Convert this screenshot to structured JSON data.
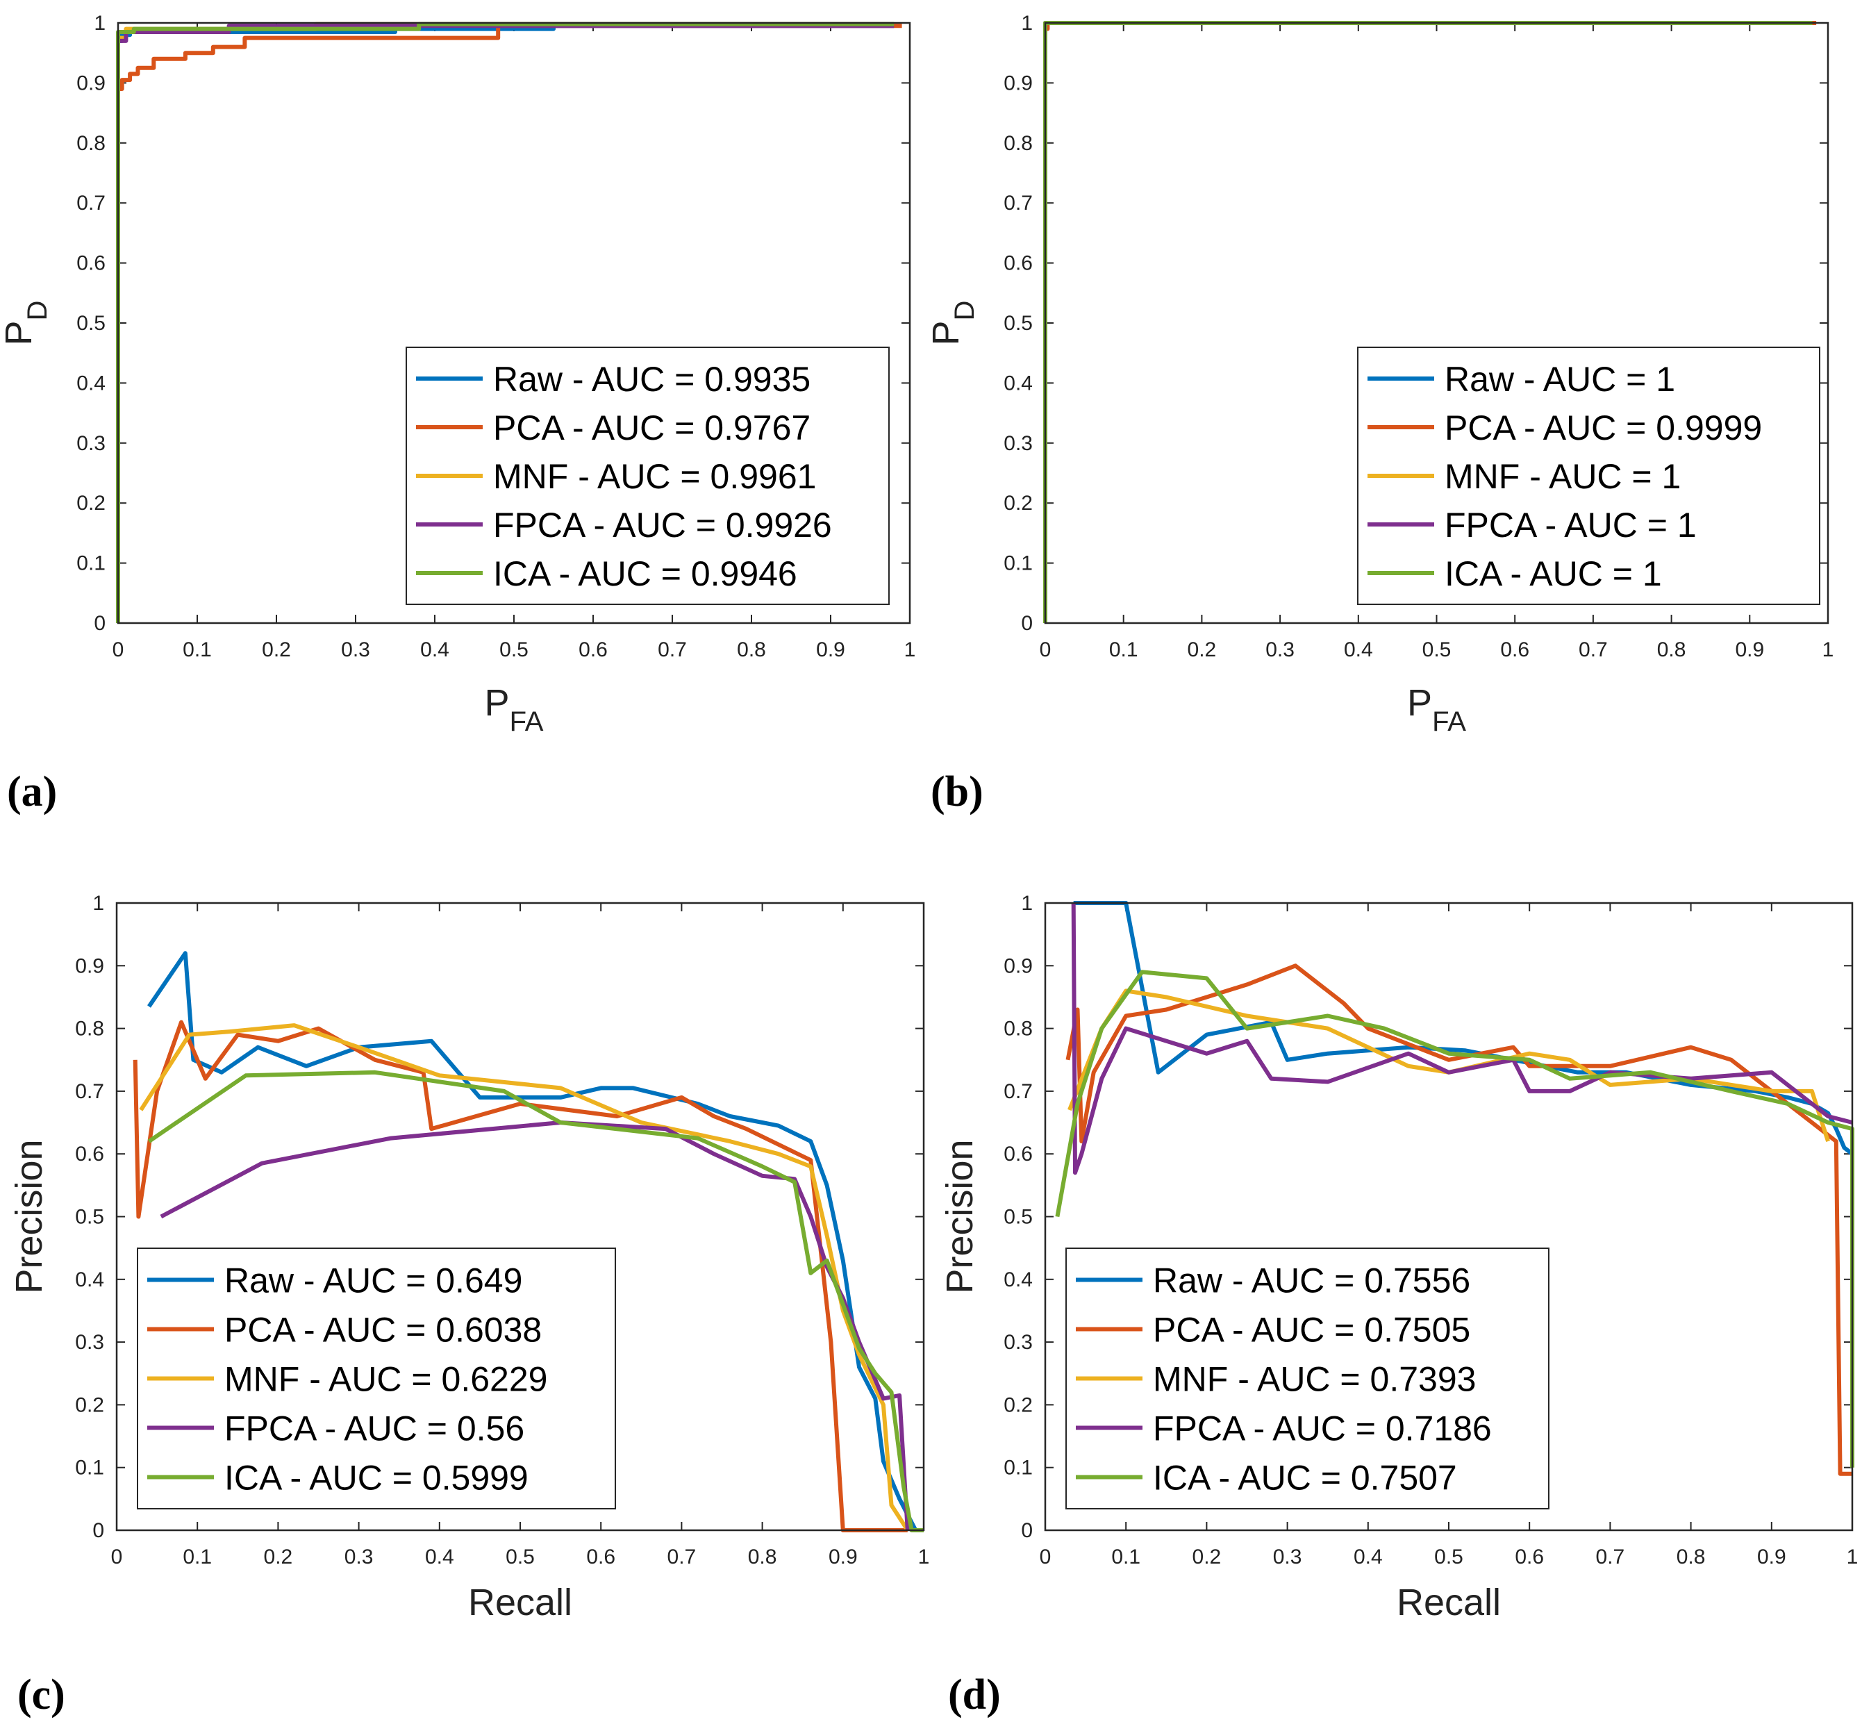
{
  "colors": {
    "Raw": "#0072BD",
    "PCA": "#D95319",
    "MNF": "#EDB120",
    "FPCA": "#7E2F8E",
    "ICA": "#77AC30"
  },
  "chart_data": [
    {
      "panel_label": "(a)",
      "type": "line",
      "title": "",
      "xlabel_main": "P",
      "xlabel_sub": "FA",
      "ylabel_main": "P",
      "ylabel_sub": "D",
      "xlim": [
        0,
        1
      ],
      "ylim": [
        0,
        1
      ],
      "xticks": [
        "0",
        "0.1",
        "0.2",
        "0.3",
        "0.4",
        "0.5",
        "0.6",
        "0.7",
        "0.8",
        "0.9",
        "1"
      ],
      "yticks": [
        "0",
        "0.1",
        "0.2",
        "0.3",
        "0.4",
        "0.5",
        "0.6",
        "0.7",
        "0.8",
        "0.9",
        "1"
      ],
      "legend_position": "bottom-right",
      "series": [
        {
          "name": "Raw",
          "legend": "Raw - AUC = 0.9935",
          "x": [
            0,
            0,
            0.005,
            0.005,
            0.015,
            0.015,
            0.35,
            0.35,
            0.55,
            0.55,
            0.98
          ],
          "y": [
            0,
            0.97,
            0.97,
            0.98,
            0.98,
            0.985,
            0.985,
            0.99,
            0.99,
            0.995,
            0.995
          ]
        },
        {
          "name": "PCA",
          "legend": "PCA - AUC = 0.9767",
          "x": [
            0,
            0,
            0.005,
            0.005,
            0.015,
            0.015,
            0.025,
            0.025,
            0.045,
            0.045,
            0.085,
            0.085,
            0.12,
            0.12,
            0.16,
            0.16,
            0.48,
            0.48,
            0.99
          ],
          "y": [
            0,
            0.89,
            0.89,
            0.905,
            0.905,
            0.915,
            0.915,
            0.925,
            0.925,
            0.94,
            0.94,
            0.95,
            0.95,
            0.96,
            0.96,
            0.975,
            0.975,
            0.995,
            0.995
          ]
        },
        {
          "name": "MNF",
          "legend": "MNF - AUC = 0.9961",
          "x": [
            0,
            0,
            0.01,
            0.01,
            0.25,
            0.25,
            0.98
          ],
          "y": [
            0,
            0.975,
            0.975,
            0.99,
            0.99,
            0.998,
            0.998
          ]
        },
        {
          "name": "FPCA",
          "legend": "FPCA - AUC = 0.9926",
          "x": [
            0,
            0,
            0.01,
            0.01,
            0.14,
            0.14,
            0.98
          ],
          "y": [
            0,
            0.97,
            0.97,
            0.985,
            0.985,
            0.995,
            0.995
          ]
        },
        {
          "name": "ICA",
          "legend": "ICA - AUC = 0.9946",
          "x": [
            0,
            0,
            0.02,
            0.02,
            0.38,
            0.38,
            0.98
          ],
          "y": [
            0,
            0.985,
            0.985,
            0.99,
            0.99,
            0.998,
            0.998
          ]
        }
      ]
    },
    {
      "panel_label": "(b)",
      "type": "line",
      "title": "",
      "xlabel_main": "P",
      "xlabel_sub": "FA",
      "ylabel_main": "P",
      "ylabel_sub": "D",
      "xlim": [
        0,
        1
      ],
      "ylim": [
        0,
        1
      ],
      "xticks": [
        "0",
        "0.1",
        "0.2",
        "0.3",
        "0.4",
        "0.5",
        "0.6",
        "0.7",
        "0.8",
        "0.9",
        "1"
      ],
      "yticks": [
        "0",
        "0.1",
        "0.2",
        "0.3",
        "0.4",
        "0.5",
        "0.6",
        "0.7",
        "0.8",
        "0.9",
        "1"
      ],
      "legend_position": "bottom-right",
      "series": [
        {
          "name": "Raw",
          "legend": "Raw - AUC = 1",
          "x": [
            0,
            0,
            0.98
          ],
          "y": [
            0,
            1,
            1
          ]
        },
        {
          "name": "PCA",
          "legend": "PCA - AUC = 0.9999",
          "x": [
            0,
            0,
            0.003,
            0.003,
            0.985
          ],
          "y": [
            0,
            0.99,
            0.99,
            1,
            1
          ]
        },
        {
          "name": "MNF",
          "legend": "MNF - AUC = 1",
          "x": [
            0,
            0,
            0.98
          ],
          "y": [
            0,
            1,
            1
          ]
        },
        {
          "name": "FPCA",
          "legend": "FPCA - AUC = 1",
          "x": [
            0,
            0,
            0.98
          ],
          "y": [
            0,
            1,
            1
          ]
        },
        {
          "name": "ICA",
          "legend": "ICA - AUC = 1",
          "x": [
            0,
            0,
            0.98
          ],
          "y": [
            0,
            1,
            1
          ]
        }
      ]
    },
    {
      "panel_label": "(c)",
      "type": "line",
      "title": "",
      "xlabel_main": "Recall",
      "xlabel_sub": "",
      "ylabel_main": "Precision",
      "ylabel_sub": "",
      "xlim": [
        0,
        1
      ],
      "ylim": [
        0,
        1
      ],
      "xticks": [
        "0",
        "0.1",
        "0.2",
        "0.3",
        "0.4",
        "0.5",
        "0.6",
        "0.7",
        "0.8",
        "0.9",
        "1"
      ],
      "yticks": [
        "0",
        "0.1",
        "0.2",
        "0.3",
        "0.4",
        "0.5",
        "0.6",
        "0.7",
        "0.8",
        "0.9",
        "1"
      ],
      "legend_position": "bottom-left",
      "series": [
        {
          "name": "Raw",
          "legend": "Raw - AUC = 0.649",
          "x": [
            0.04,
            0.085,
            0.095,
            0.13,
            0.175,
            0.235,
            0.3,
            0.39,
            0.45,
            0.55,
            0.6,
            0.64,
            0.72,
            0.74,
            0.76,
            0.78,
            0.8,
            0.82,
            0.86,
            0.88,
            0.9,
            0.92,
            0.94,
            0.95,
            0.97,
            0.99
          ],
          "y": [
            0.835,
            0.92,
            0.75,
            0.73,
            0.77,
            0.74,
            0.77,
            0.78,
            0.69,
            0.69,
            0.705,
            0.705,
            0.68,
            0.67,
            0.66,
            0.655,
            0.65,
            0.645,
            0.62,
            0.55,
            0.43,
            0.26,
            0.21,
            0.11,
            0.05,
            0.0
          ]
        },
        {
          "name": "PCA",
          "legend": "PCA - AUC = 0.6038",
          "x": [
            0.023,
            0.027,
            0.05,
            0.08,
            0.11,
            0.15,
            0.2,
            0.25,
            0.32,
            0.38,
            0.39,
            0.5,
            0.62,
            0.7,
            0.74,
            0.78,
            0.86,
            0.885,
            0.9,
            0.92,
            0.96,
            0.98
          ],
          "y": [
            0.75,
            0.5,
            0.7,
            0.81,
            0.72,
            0.79,
            0.78,
            0.8,
            0.75,
            0.73,
            0.64,
            0.68,
            0.66,
            0.69,
            0.66,
            0.64,
            0.59,
            0.3,
            0.0,
            0.0,
            0.0,
            0.0
          ]
        },
        {
          "name": "MNF",
          "legend": "MNF - AUC = 0.6229",
          "x": [
            0.03,
            0.09,
            0.14,
            0.22,
            0.3,
            0.4,
            0.55,
            0.65,
            0.76,
            0.82,
            0.86,
            0.88,
            0.9,
            0.92,
            0.95,
            0.96,
            0.97,
            0.98
          ],
          "y": [
            0.67,
            0.79,
            0.795,
            0.805,
            0.77,
            0.725,
            0.705,
            0.65,
            0.62,
            0.6,
            0.58,
            0.47,
            0.35,
            0.28,
            0.2,
            0.04,
            0.02,
            0.0
          ]
        },
        {
          "name": "FPCA",
          "legend": "FPCA - AUC = 0.56",
          "x": [
            0.055,
            0.18,
            0.34,
            0.55,
            0.68,
            0.74,
            0.8,
            0.84,
            0.86,
            0.88,
            0.9,
            0.92,
            0.95,
            0.97,
            0.98
          ],
          "y": [
            0.5,
            0.585,
            0.625,
            0.65,
            0.64,
            0.6,
            0.565,
            0.56,
            0.5,
            0.42,
            0.37,
            0.3,
            0.21,
            0.215,
            0.0
          ]
        },
        {
          "name": "ICA",
          "legend": "ICA - AUC = 0.5999",
          "x": [
            0.04,
            0.16,
            0.32,
            0.48,
            0.55,
            0.72,
            0.8,
            0.84,
            0.86,
            0.88,
            0.9,
            0.92,
            0.94,
            0.96,
            0.975,
            0.985,
            1.0
          ],
          "y": [
            0.62,
            0.725,
            0.73,
            0.7,
            0.65,
            0.625,
            0.58,
            0.555,
            0.41,
            0.43,
            0.36,
            0.29,
            0.25,
            0.22,
            0.07,
            0.0,
            0.0
          ]
        }
      ]
    },
    {
      "panel_label": "(d)",
      "type": "line",
      "title": "",
      "xlabel_main": "Recall",
      "xlabel_sub": "",
      "ylabel_main": "Precision",
      "ylabel_sub": "",
      "xlim": [
        0,
        1
      ],
      "ylim": [
        0,
        1
      ],
      "xticks": [
        "0",
        "0.1",
        "0.2",
        "0.3",
        "0.4",
        "0.5",
        "0.6",
        "0.7",
        "0.8",
        "0.9",
        "1"
      ],
      "yticks": [
        "0",
        "0.1",
        "0.2",
        "0.3",
        "0.4",
        "0.5",
        "0.6",
        "0.7",
        "0.8",
        "0.9",
        "1"
      ],
      "legend_position": "bottom-left",
      "series": [
        {
          "name": "Raw",
          "legend": "Raw - AUC = 0.7556",
          "x": [
            0.035,
            0.1,
            0.14,
            0.2,
            0.28,
            0.3,
            0.35,
            0.45,
            0.52,
            0.6,
            0.66,
            0.72,
            0.8,
            0.88,
            0.92,
            0.95,
            0.97,
            0.98,
            0.99,
            1.0
          ],
          "y": [
            1.0,
            1.0,
            0.73,
            0.79,
            0.81,
            0.75,
            0.76,
            0.77,
            0.765,
            0.745,
            0.73,
            0.73,
            0.71,
            0.7,
            0.69,
            0.68,
            0.665,
            0.64,
            0.61,
            0.6
          ]
        },
        {
          "name": "PCA",
          "legend": "PCA - AUC = 0.7505",
          "x": [
            0.028,
            0.04,
            0.045,
            0.06,
            0.1,
            0.15,
            0.2,
            0.25,
            0.31,
            0.37,
            0.4,
            0.5,
            0.58,
            0.6,
            0.7,
            0.8,
            0.85,
            0.9,
            0.98,
            0.985,
            1.0
          ],
          "y": [
            0.75,
            0.83,
            0.62,
            0.73,
            0.82,
            0.83,
            0.85,
            0.87,
            0.9,
            0.84,
            0.8,
            0.75,
            0.77,
            0.74,
            0.74,
            0.77,
            0.75,
            0.7,
            0.62,
            0.09,
            0.09
          ]
        },
        {
          "name": "MNF",
          "legend": "MNF - AUC = 0.7393",
          "x": [
            0.03,
            0.07,
            0.1,
            0.15,
            0.25,
            0.35,
            0.45,
            0.5,
            0.6,
            0.65,
            0.7,
            0.8,
            0.9,
            0.95,
            0.97
          ],
          "y": [
            0.67,
            0.8,
            0.86,
            0.85,
            0.82,
            0.8,
            0.74,
            0.73,
            0.76,
            0.75,
            0.71,
            0.72,
            0.7,
            0.7,
            0.62
          ]
        },
        {
          "name": "FPCA",
          "legend": "FPCA - AUC = 0.7186",
          "x": [
            0.035,
            0.037,
            0.045,
            0.07,
            0.1,
            0.2,
            0.25,
            0.28,
            0.35,
            0.45,
            0.5,
            0.58,
            0.6,
            0.65,
            0.7,
            0.8,
            0.9,
            0.95,
            0.97,
            1.0
          ],
          "y": [
            1.0,
            0.57,
            0.6,
            0.72,
            0.8,
            0.76,
            0.78,
            0.72,
            0.715,
            0.76,
            0.73,
            0.75,
            0.7,
            0.7,
            0.73,
            0.72,
            0.73,
            0.68,
            0.66,
            0.65
          ]
        },
        {
          "name": "ICA",
          "legend": "ICA - AUC = 0.7507",
          "x": [
            0.015,
            0.04,
            0.07,
            0.12,
            0.2,
            0.25,
            0.3,
            0.35,
            0.42,
            0.5,
            0.6,
            0.65,
            0.75,
            0.85,
            0.92,
            0.97,
            1.0,
            1.0
          ],
          "y": [
            0.5,
            0.68,
            0.8,
            0.89,
            0.88,
            0.8,
            0.81,
            0.82,
            0.8,
            0.76,
            0.75,
            0.72,
            0.73,
            0.7,
            0.68,
            0.65,
            0.64,
            0.1
          ]
        }
      ]
    }
  ]
}
